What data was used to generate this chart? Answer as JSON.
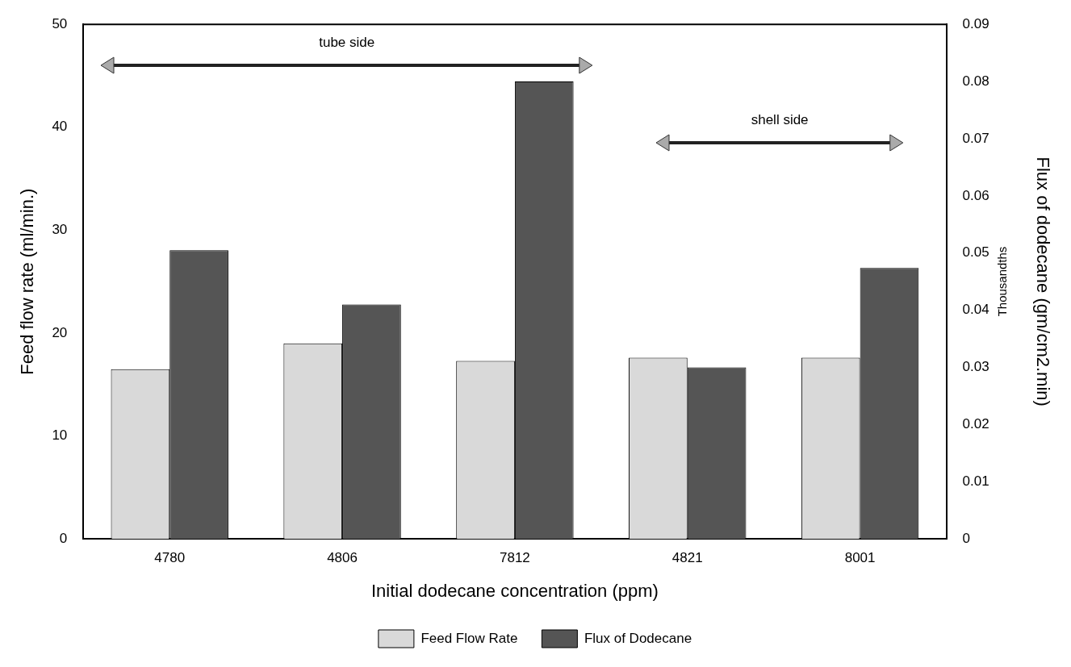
{
  "chart_data": {
    "type": "bar",
    "xlabel": "Initial dodecane concentration (ppm)",
    "ylabel": "Feed flow rate (ml/min.)",
    "y2label": "Flux of dodecane (gm/cm2.min)",
    "categories": [
      "4780",
      "4806",
      "7812",
      "4821",
      "8001"
    ],
    "series": [
      {
        "name": "Feed Flow Rate",
        "color": "#d9d9d9",
        "values": [
          16.5,
          19.0,
          17.3,
          17.6,
          17.6
        ]
      },
      {
        "name": "Flux of Dodecane",
        "color": "#555555",
        "axis": "y2",
        "values": [
          0.0505,
          0.041,
          0.08,
          0.03,
          0.0474
        ]
      }
    ],
    "ylim": [
      0,
      50
    ],
    "yticks": [
      0,
      10,
      20,
      30,
      40,
      50
    ],
    "y2lim": [
      0,
      0.09
    ],
    "y2ticks": [
      0,
      0.01,
      0.02,
      0.03,
      0.04,
      0.05,
      0.06,
      0.07,
      0.08,
      0.09
    ],
    "annotations": [
      "tube side",
      "shell side",
      "Thousandths"
    ],
    "legend": "bottom",
    "grid": false
  }
}
